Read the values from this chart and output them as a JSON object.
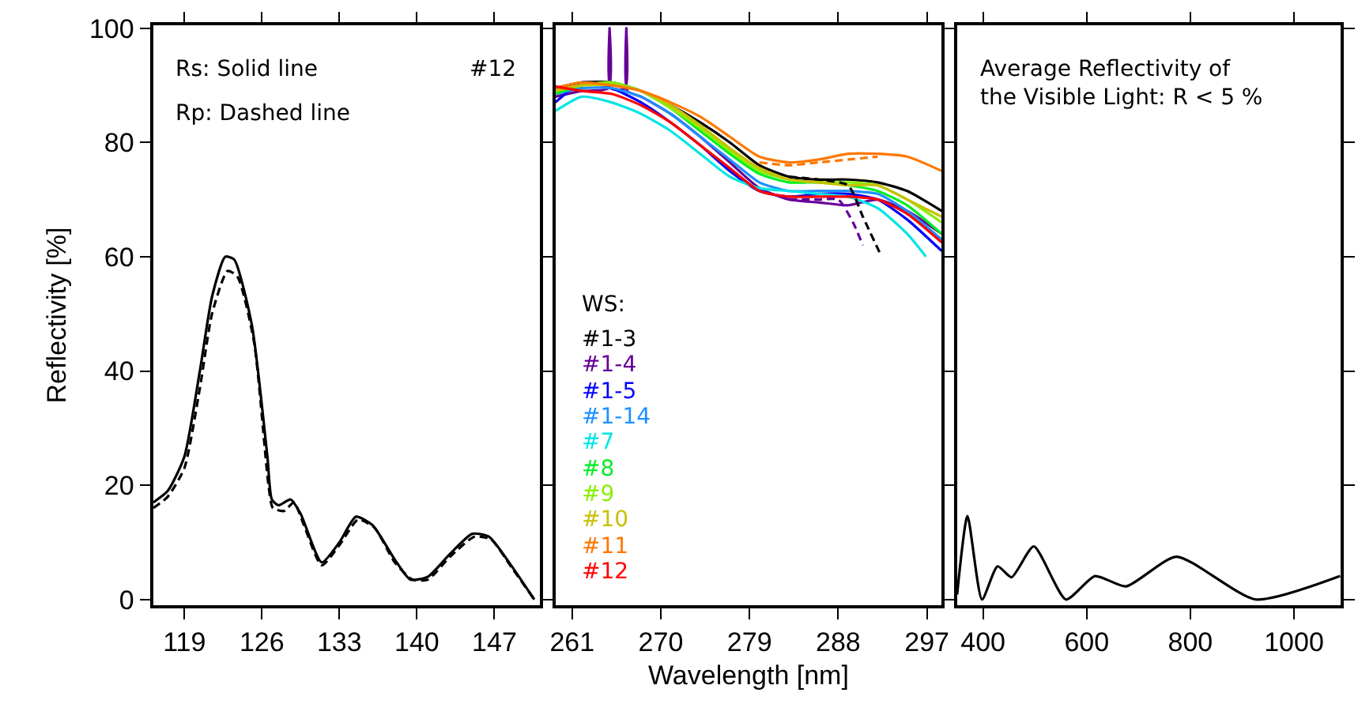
{
  "chart_data": [
    {
      "type": "line",
      "ylabel": "Reflectivity [%]",
      "xlim": [
        116.2,
        151.1
      ],
      "xticks": [
        119,
        126,
        133,
        140,
        147
      ],
      "ylim": [
        -1,
        100.5
      ],
      "yticks": [
        0,
        20,
        40,
        60,
        80,
        100
      ],
      "annotations": [
        "Rs: Solid line",
        "Rp: Dashed line",
        "#12"
      ],
      "series": [
        {
          "color": "#000000",
          "line_style": "solid",
          "x": [
            116.2,
            117.5,
            119,
            120.4,
            121.5,
            122.7,
            123.5,
            125.1,
            126.5,
            126.9,
            127.5,
            128.6,
            129.5,
            131.4,
            133,
            134.5,
            136,
            138,
            139.4,
            141,
            143,
            145,
            146.5,
            148.5,
            150.6
          ],
          "values": [
            17,
            19,
            25,
            40,
            53,
            60,
            59.5,
            48,
            25,
            17.5,
            16.5,
            17.5,
            15,
            6.5,
            10,
            14.5,
            13,
            7,
            3.5,
            4,
            8,
            11.5,
            11,
            6,
            0
          ]
        },
        {
          "color": "#000000",
          "line_style": "dashed",
          "x": [
            116.2,
            117.5,
            119,
            120.4,
            121.5,
            122.9,
            123.8,
            125.3,
            126.6,
            127,
            128,
            128.9,
            129.8,
            131.4,
            133,
            134.7,
            136.2,
            138,
            139.6,
            141,
            143,
            145.2,
            146.7,
            148.6,
            150.6
          ],
          "values": [
            16,
            18,
            23,
            37,
            50,
            57.5,
            56.5,
            45,
            20,
            16,
            15.5,
            17,
            13,
            6,
            9.5,
            14,
            12.5,
            6.5,
            3.5,
            3.5,
            7.5,
            11,
            10.5,
            5.5,
            0
          ]
        }
      ]
    },
    {
      "type": "line",
      "xlabel": "Wavelength [nm]",
      "xlim": [
        259.3,
        298.5
      ],
      "xticks": [
        261,
        270,
        279,
        288,
        297
      ],
      "ylim": [
        -1,
        100.5
      ],
      "yticks": [
        0,
        20,
        40,
        60,
        80,
        100
      ],
      "tick_labels": "x",
      "annotations": [
        "WS:"
      ],
      "x": [
        259.3,
        262,
        265,
        268,
        271,
        274,
        277,
        280,
        283,
        286,
        289,
        292,
        295,
        298.5
      ],
      "series": [
        {
          "name": "#1-3",
          "color": "#000000",
          "values": [
            89.5,
            90.5,
            90.5,
            89,
            86.5,
            83.5,
            80,
            76,
            74,
            73.5,
            73.5,
            73,
            71.5,
            68
          ]
        },
        {
          "name": "#1-4",
          "color": "#660099",
          "x": [
            259.3,
            262,
            264.7,
            264.8,
            264.9,
            266.4,
            266.5,
            266.6,
            268,
            271,
            274,
            277,
            280,
            283,
            286,
            289,
            292,
            295,
            298.5
          ],
          "values": [
            88,
            89,
            89.5,
            100,
            89.5,
            89.5,
            100,
            89,
            88,
            85,
            81,
            76.5,
            72,
            70,
            69.5,
            69,
            70,
            68,
            64
          ]
        },
        {
          "name": "#1-5",
          "color": "#0000ff",
          "values": [
            87,
            90.5,
            89.5,
            87,
            83.5,
            79.5,
            75,
            71.5,
            70.5,
            71,
            71,
            70,
            66.5,
            61
          ]
        },
        {
          "name": "#1-14",
          "color": "#1e90ff",
          "values": [
            88.5,
            89.5,
            89.5,
            88,
            85,
            81,
            77,
            73,
            71.5,
            71.5,
            71.5,
            71,
            68,
            63
          ]
        },
        {
          "name": "#7",
          "color": "#00e5e5",
          "x": [
            259.3,
            262,
            265,
            268,
            271,
            274,
            277,
            280,
            283,
            286,
            289,
            292,
            295,
            296.9
          ],
          "values": [
            85.5,
            88,
            87,
            85,
            82,
            78,
            74,
            72,
            71.5,
            71,
            70.5,
            68.5,
            64,
            60
          ]
        },
        {
          "name": "#8",
          "color": "#00ee22",
          "values": [
            88.5,
            90,
            90.5,
            89,
            86,
            82,
            78,
            74.5,
            73,
            73,
            72.5,
            71.5,
            69,
            64
          ]
        },
        {
          "name": "#9",
          "color": "#88ee00",
          "values": [
            89,
            90,
            90.5,
            89,
            86,
            82.5,
            78.5,
            75,
            73.5,
            73,
            73,
            72.5,
            70,
            66
          ]
        },
        {
          "name": "#10",
          "color": "#c8c000",
          "values": [
            89,
            90,
            90,
            89,
            86.5,
            83,
            79,
            75.5,
            73.5,
            73,
            72.5,
            72.5,
            70,
            67
          ]
        },
        {
          "name": "#11",
          "color": "#ff7700",
          "values": [
            89.5,
            90.5,
            90,
            89,
            87,
            84.5,
            81,
            77.5,
            76.5,
            77,
            78,
            78,
            77.5,
            75
          ]
        },
        {
          "name": "#12",
          "color": "#ff0000",
          "values": [
            89.8,
            89,
            88.5,
            86.5,
            83.5,
            79.5,
            75.5,
            71.5,
            70.5,
            70.5,
            70.5,
            70,
            67.5,
            62.5
          ]
        },
        {
          "color": "#000000",
          "line_style": "dashed",
          "x": [
            283,
            286,
            289,
            290.5,
            292.4
          ],
          "values": [
            74,
            73.5,
            72.5,
            67,
            60
          ]
        },
        {
          "color": "#660099",
          "line_style": "dashed",
          "x": [
            283,
            286,
            288,
            289.5,
            290.5
          ],
          "values": [
            70,
            70,
            70,
            66,
            62
          ]
        },
        {
          "color": "#ff7700",
          "line_style": "dashed",
          "x": [
            280,
            283,
            286,
            289,
            292
          ],
          "values": [
            76.5,
            76,
            76.5,
            77,
            77.5
          ]
        }
      ]
    },
    {
      "type": "line",
      "xlim": [
        350,
        1090
      ],
      "xticks": [
        400,
        600,
        800,
        1000
      ],
      "ylim": [
        -1,
        100.5
      ],
      "yticks": [
        0,
        20,
        40,
        60,
        80,
        100
      ],
      "tick_labels": "x",
      "annotations": [
        "Average Reflectivity of\nthe Visible Light: R < 5 %"
      ],
      "x": [
        350,
        370,
        398,
        428,
        455,
        498,
        560,
        616,
        676,
        773,
        926,
        1089
      ],
      "series": [
        {
          "color": "#000000",
          "values": [
            0.9,
            14.6,
            0,
            5.8,
            3.9,
            9.3,
            0,
            4.1,
            2.3,
            7.5,
            0,
            4.1
          ]
        }
      ]
    }
  ]
}
